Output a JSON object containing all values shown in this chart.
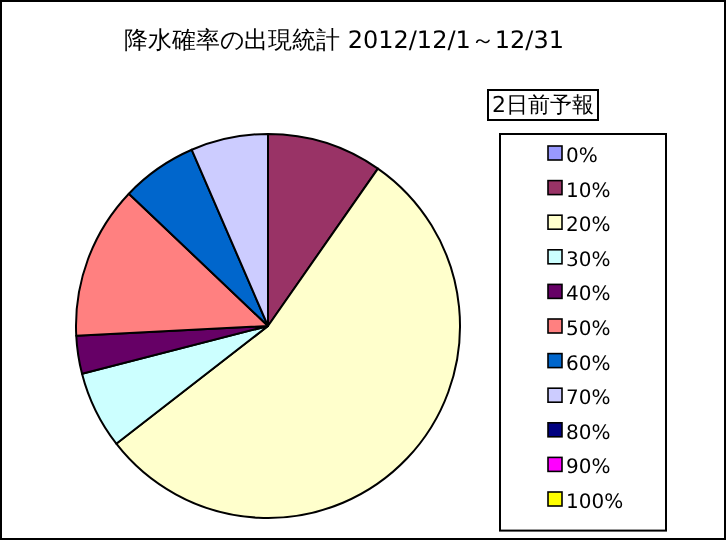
{
  "chart_data": {
    "type": "pie",
    "title": "降水確率の出現統計 2012/12/1～12/31",
    "legend_title": "2日前予報",
    "legend": "right",
    "categories": [
      "0%",
      "10%",
      "20%",
      "30%",
      "40%",
      "50%",
      "60%",
      "70%",
      "80%",
      "90%",
      "100%"
    ],
    "values": [
      0,
      9.7,
      54.8,
      6.5,
      3.2,
      12.9,
      6.4,
      6.5,
      0,
      0,
      0
    ],
    "colors": [
      "#9999ff",
      "#993366",
      "#ffffcc",
      "#ccffff",
      "#660066",
      "#ff8080",
      "#0066cc",
      "#ccccff",
      "#000080",
      "#ff00ff",
      "#ffff00"
    ]
  }
}
